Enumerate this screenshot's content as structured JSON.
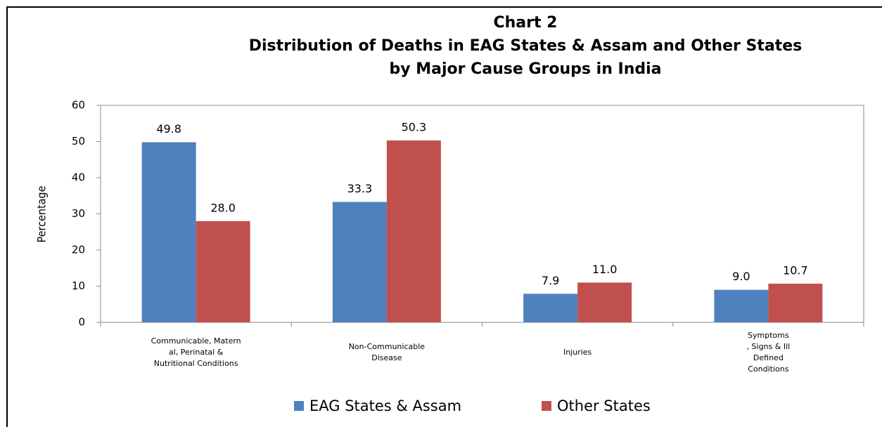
{
  "chart_data": {
    "type": "bar",
    "title": [
      "Chart 2",
      "Distribution of Deaths in EAG States & Assam and Other States",
      "by Major Cause Groups in India"
    ],
    "ylabel": "Percentage",
    "categories": [
      "Communicable, Matern\nal, Perinatal &\nNutritional Conditions",
      "Non-Communicable\nDisease",
      "Injuries",
      "Symptoms\n, Signs & Ill\nDefined\nConditions"
    ],
    "series": [
      {
        "name": "EAG States & Assam",
        "color": "#4f81bd",
        "values": [
          49.8,
          33.3,
          7.9,
          9.0
        ],
        "value_labels": [
          "49.8",
          "33.3",
          "7.9",
          "9.0"
        ]
      },
      {
        "name": "Other States",
        "color": "#c0504d",
        "values": [
          28.0,
          50.3,
          11.0,
          10.7
        ],
        "value_labels": [
          "28.0",
          "50.3",
          "11.0",
          "10.7"
        ]
      }
    ],
    "ylim": [
      0,
      60
    ],
    "yticks": [
      0,
      10,
      20,
      30,
      40,
      50,
      60
    ],
    "grid": false,
    "legend": "bottom"
  }
}
